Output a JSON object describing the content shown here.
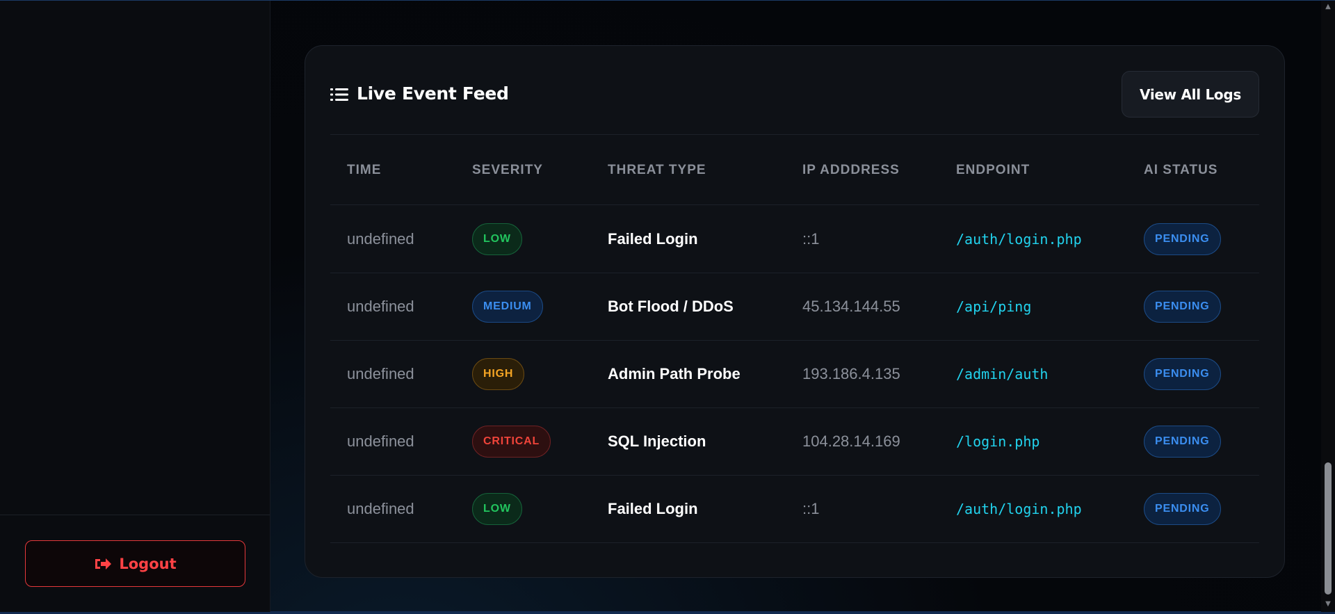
{
  "sidebar": {
    "logout_label": "Logout"
  },
  "feed": {
    "title": "Live Event Feed",
    "view_all_label": "View All Logs"
  },
  "table": {
    "columns": [
      "TIME",
      "SEVERITY",
      "THREAT TYPE",
      "IP ADDDRESS",
      "ENDPOINT",
      "AI STATUS"
    ],
    "rows": [
      {
        "time": "undefined",
        "severity": "LOW",
        "threat": "Failed Login",
        "ip": "::1",
        "endpoint": "/auth/login.php",
        "ai_status": "PENDING"
      },
      {
        "time": "undefined",
        "severity": "MEDIUM",
        "threat": "Bot Flood / DDoS",
        "ip": "45.134.144.55",
        "endpoint": "/api/ping",
        "ai_status": "PENDING"
      },
      {
        "time": "undefined",
        "severity": "HIGH",
        "threat": "Admin Path Probe",
        "ip": "193.186.4.135",
        "endpoint": "/admin/auth",
        "ai_status": "PENDING"
      },
      {
        "time": "undefined",
        "severity": "CRITICAL",
        "threat": "SQL Injection",
        "ip": "104.28.14.169",
        "endpoint": "/login.php",
        "ai_status": "PENDING"
      },
      {
        "time": "undefined",
        "severity": "LOW",
        "threat": "Failed Login",
        "ip": "::1",
        "endpoint": "/auth/login.php",
        "ai_status": "PENDING"
      }
    ]
  },
  "colors": {
    "low": "#22c55e",
    "medium": "#3b8ef0",
    "high": "#f5a524",
    "critical": "#f0443a",
    "endpoint": "#22d3ee",
    "logout": "#ff4245"
  },
  "icons": {
    "title_icon": "list-icon",
    "logout_icon": "sign-out-icon"
  }
}
